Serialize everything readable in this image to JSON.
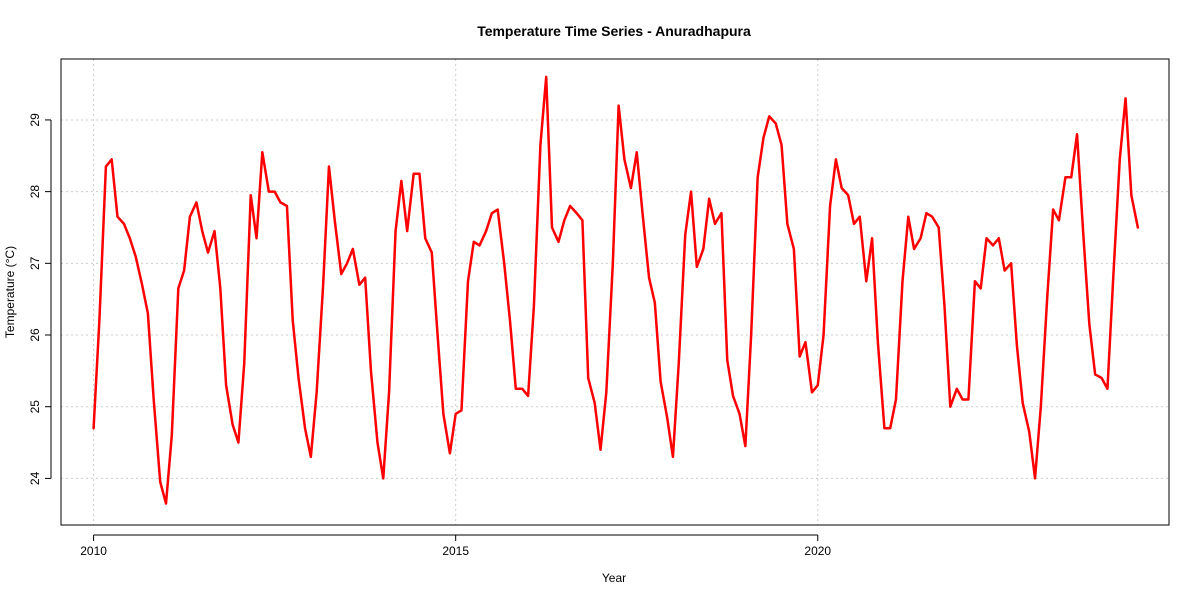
{
  "chart_data": {
    "type": "line",
    "title": "Temperature Time Series - Anuradhapura",
    "xlabel": "Year",
    "ylabel": "Temperature (°C)",
    "xlim": [
      2009.55,
      2024.85
    ],
    "ylim": [
      23.35,
      29.85
    ],
    "x_ticks": [
      2010,
      2015,
      2020
    ],
    "y_ticks": [
      24,
      25,
      26,
      27,
      28,
      29
    ],
    "grid": true,
    "series": [
      {
        "color": "#ff0000",
        "points": [
          [
            2010.0,
            24.7
          ],
          [
            2010.08,
            26.2
          ],
          [
            2010.17,
            28.35
          ],
          [
            2010.25,
            28.45
          ],
          [
            2010.33,
            27.65
          ],
          [
            2010.42,
            27.55
          ],
          [
            2010.5,
            27.35
          ],
          [
            2010.58,
            27.1
          ],
          [
            2010.67,
            26.7
          ],
          [
            2010.75,
            26.3
          ],
          [
            2010.83,
            25.1
          ],
          [
            2010.92,
            23.95
          ],
          [
            2011.0,
            23.65
          ],
          [
            2011.08,
            24.6
          ],
          [
            2011.17,
            26.65
          ],
          [
            2011.25,
            26.9
          ],
          [
            2011.33,
            27.65
          ],
          [
            2011.42,
            27.85
          ],
          [
            2011.5,
            27.45
          ],
          [
            2011.58,
            27.15
          ],
          [
            2011.67,
            27.45
          ],
          [
            2011.75,
            26.65
          ],
          [
            2011.83,
            25.3
          ],
          [
            2011.92,
            24.75
          ],
          [
            2012.0,
            24.5
          ],
          [
            2012.08,
            25.6
          ],
          [
            2012.17,
            27.95
          ],
          [
            2012.25,
            27.35
          ],
          [
            2012.33,
            28.55
          ],
          [
            2012.42,
            28.0
          ],
          [
            2012.5,
            28.0
          ],
          [
            2012.58,
            27.85
          ],
          [
            2012.67,
            27.8
          ],
          [
            2012.75,
            26.2
          ],
          [
            2012.83,
            25.4
          ],
          [
            2012.92,
            24.7
          ],
          [
            2013.0,
            24.3
          ],
          [
            2013.08,
            25.2
          ],
          [
            2013.17,
            26.7
          ],
          [
            2013.25,
            28.35
          ],
          [
            2013.33,
            27.6
          ],
          [
            2013.42,
            26.85
          ],
          [
            2013.5,
            27.0
          ],
          [
            2013.58,
            27.2
          ],
          [
            2013.67,
            26.7
          ],
          [
            2013.75,
            26.8
          ],
          [
            2013.83,
            25.5
          ],
          [
            2013.92,
            24.5
          ],
          [
            2014.0,
            24.0
          ],
          [
            2014.08,
            25.2
          ],
          [
            2014.17,
            27.45
          ],
          [
            2014.25,
            28.15
          ],
          [
            2014.33,
            27.45
          ],
          [
            2014.42,
            28.25
          ],
          [
            2014.5,
            28.25
          ],
          [
            2014.58,
            27.35
          ],
          [
            2014.67,
            27.15
          ],
          [
            2014.75,
            26.0
          ],
          [
            2014.83,
            24.9
          ],
          [
            2014.92,
            24.35
          ],
          [
            2015.0,
            24.9
          ],
          [
            2015.08,
            24.95
          ],
          [
            2015.17,
            26.75
          ],
          [
            2015.25,
            27.3
          ],
          [
            2015.33,
            27.25
          ],
          [
            2015.42,
            27.45
          ],
          [
            2015.5,
            27.7
          ],
          [
            2015.58,
            27.75
          ],
          [
            2015.67,
            27.0
          ],
          [
            2015.75,
            26.2
          ],
          [
            2015.83,
            25.25
          ],
          [
            2015.92,
            25.25
          ],
          [
            2016.0,
            25.15
          ],
          [
            2016.08,
            26.4
          ],
          [
            2016.17,
            28.65
          ],
          [
            2016.25,
            29.6
          ],
          [
            2016.33,
            27.5
          ],
          [
            2016.42,
            27.3
          ],
          [
            2016.5,
            27.6
          ],
          [
            2016.58,
            27.8
          ],
          [
            2016.67,
            27.7
          ],
          [
            2016.75,
            27.6
          ],
          [
            2016.83,
            25.4
          ],
          [
            2016.92,
            25.05
          ],
          [
            2017.0,
            24.4
          ],
          [
            2017.08,
            25.2
          ],
          [
            2017.17,
            27.0
          ],
          [
            2017.25,
            29.2
          ],
          [
            2017.33,
            28.45
          ],
          [
            2017.42,
            28.05
          ],
          [
            2017.5,
            28.55
          ],
          [
            2017.58,
            27.7
          ],
          [
            2017.67,
            26.8
          ],
          [
            2017.75,
            26.45
          ],
          [
            2017.83,
            25.35
          ],
          [
            2017.92,
            24.85
          ],
          [
            2018.0,
            24.3
          ],
          [
            2018.08,
            25.6
          ],
          [
            2018.17,
            27.4
          ],
          [
            2018.25,
            28.0
          ],
          [
            2018.33,
            26.95
          ],
          [
            2018.42,
            27.2
          ],
          [
            2018.5,
            27.9
          ],
          [
            2018.58,
            27.55
          ],
          [
            2018.67,
            27.7
          ],
          [
            2018.75,
            25.65
          ],
          [
            2018.83,
            25.15
          ],
          [
            2018.92,
            24.9
          ],
          [
            2019.0,
            24.45
          ],
          [
            2019.08,
            26.0
          ],
          [
            2019.17,
            28.2
          ],
          [
            2019.25,
            28.75
          ],
          [
            2019.33,
            29.05
          ],
          [
            2019.42,
            28.95
          ],
          [
            2019.5,
            28.65
          ],
          [
            2019.58,
            27.55
          ],
          [
            2019.67,
            27.2
          ],
          [
            2019.75,
            25.7
          ],
          [
            2019.83,
            25.9
          ],
          [
            2019.92,
            25.2
          ],
          [
            2020.0,
            25.3
          ],
          [
            2020.08,
            26.0
          ],
          [
            2020.17,
            27.8
          ],
          [
            2020.25,
            28.45
          ],
          [
            2020.33,
            28.05
          ],
          [
            2020.42,
            27.95
          ],
          [
            2020.5,
            27.55
          ],
          [
            2020.58,
            27.65
          ],
          [
            2020.67,
            26.75
          ],
          [
            2020.75,
            27.35
          ],
          [
            2020.83,
            25.9
          ],
          [
            2020.92,
            24.7
          ],
          [
            2021.0,
            24.7
          ],
          [
            2021.08,
            25.1
          ],
          [
            2021.17,
            26.75
          ],
          [
            2021.25,
            27.65
          ],
          [
            2021.33,
            27.2
          ],
          [
            2021.42,
            27.35
          ],
          [
            2021.5,
            27.7
          ],
          [
            2021.58,
            27.65
          ],
          [
            2021.67,
            27.5
          ],
          [
            2021.75,
            26.4
          ],
          [
            2021.83,
            25.0
          ],
          [
            2021.92,
            25.25
          ],
          [
            2022.0,
            25.1
          ],
          [
            2022.08,
            25.1
          ],
          [
            2022.17,
            26.75
          ],
          [
            2022.25,
            26.65
          ],
          [
            2022.33,
            27.35
          ],
          [
            2022.42,
            27.25
          ],
          [
            2022.5,
            27.35
          ],
          [
            2022.58,
            26.9
          ],
          [
            2022.67,
            27.0
          ],
          [
            2022.75,
            25.85
          ],
          [
            2022.83,
            25.05
          ],
          [
            2022.92,
            24.65
          ],
          [
            2023.0,
            24.0
          ],
          [
            2023.08,
            25.0
          ],
          [
            2023.17,
            26.55
          ],
          [
            2023.25,
            27.75
          ],
          [
            2023.33,
            27.6
          ],
          [
            2023.42,
            28.2
          ],
          [
            2023.5,
            28.2
          ],
          [
            2023.58,
            28.8
          ],
          [
            2023.67,
            27.35
          ],
          [
            2023.75,
            26.15
          ],
          [
            2023.83,
            25.45
          ],
          [
            2023.92,
            25.4
          ],
          [
            2024.0,
            25.25
          ],
          [
            2024.08,
            26.8
          ],
          [
            2024.17,
            28.45
          ],
          [
            2024.25,
            29.3
          ],
          [
            2024.33,
            27.95
          ],
          [
            2024.42,
            27.5
          ]
        ]
      }
    ]
  }
}
